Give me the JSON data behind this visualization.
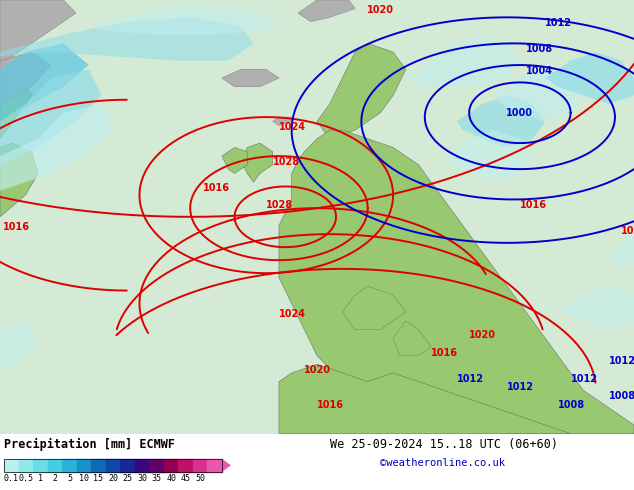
{
  "title_left": "Precipitation [mm] ECMWF",
  "title_right": "We 25-09-2024 15..18 UTC (06+60)",
  "subtitle_right": "©weatheronline.co.uk",
  "colorbar_labels": [
    "0.1",
    "0.5",
    "1",
    "2",
    "5",
    "10",
    "15",
    "20",
    "25",
    "30",
    "35",
    "40",
    "45",
    "50"
  ],
  "colorbar_colors": [
    "#b8f0f0",
    "#90e8e8",
    "#68dce8",
    "#48cce0",
    "#28b4d8",
    "#1890c8",
    "#1068b8",
    "#1048a8",
    "#182898",
    "#380880",
    "#600068",
    "#900050",
    "#c01068",
    "#d83090",
    "#e858b0"
  ],
  "fig_width": 6.34,
  "fig_height": 4.9,
  "dpi": 100,
  "map_bg_color": "#d4ead4",
  "land_green": "#98c870",
  "land_gray": "#b0b0b0",
  "ocean_light": "#ddf0dd",
  "precip_light1": "#c0eef0",
  "precip_light2": "#90dce8",
  "precip_mid": "#60c8e0",
  "precip_dark": "#3898c0",
  "isobar_red": "#dd0000",
  "isobar_blue": "#0000cc",
  "label_fontsize": 7,
  "isobar_lw": 1.4
}
